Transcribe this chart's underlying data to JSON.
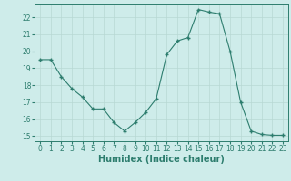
{
  "x": [
    0,
    1,
    2,
    3,
    4,
    5,
    6,
    7,
    8,
    9,
    10,
    11,
    12,
    13,
    14,
    15,
    16,
    17,
    18,
    19,
    20,
    21,
    22,
    23
  ],
  "y": [
    19.5,
    19.5,
    18.5,
    17.8,
    17.3,
    16.6,
    16.6,
    15.8,
    15.3,
    15.8,
    16.4,
    17.2,
    19.8,
    20.6,
    20.8,
    22.45,
    22.3,
    22.2,
    20.0,
    17.0,
    15.3,
    15.1,
    15.05,
    15.05
  ],
  "xlabel": "Humidex (Indice chaleur)",
  "xlim": [
    -0.5,
    23.5
  ],
  "ylim": [
    14.7,
    22.8
  ],
  "yticks": [
    15,
    16,
    17,
    18,
    19,
    20,
    21,
    22
  ],
  "xticks": [
    0,
    1,
    2,
    3,
    4,
    5,
    6,
    7,
    8,
    9,
    10,
    11,
    12,
    13,
    14,
    15,
    16,
    17,
    18,
    19,
    20,
    21,
    22,
    23
  ],
  "line_color": "#2d7d6e",
  "marker_color": "#2d7d6e",
  "bg_color": "#ceecea",
  "grid_color": "#b8d8d4",
  "axis_color": "#2d7d6e",
  "tick_fontsize": 5.5,
  "xlabel_fontsize": 7.0
}
